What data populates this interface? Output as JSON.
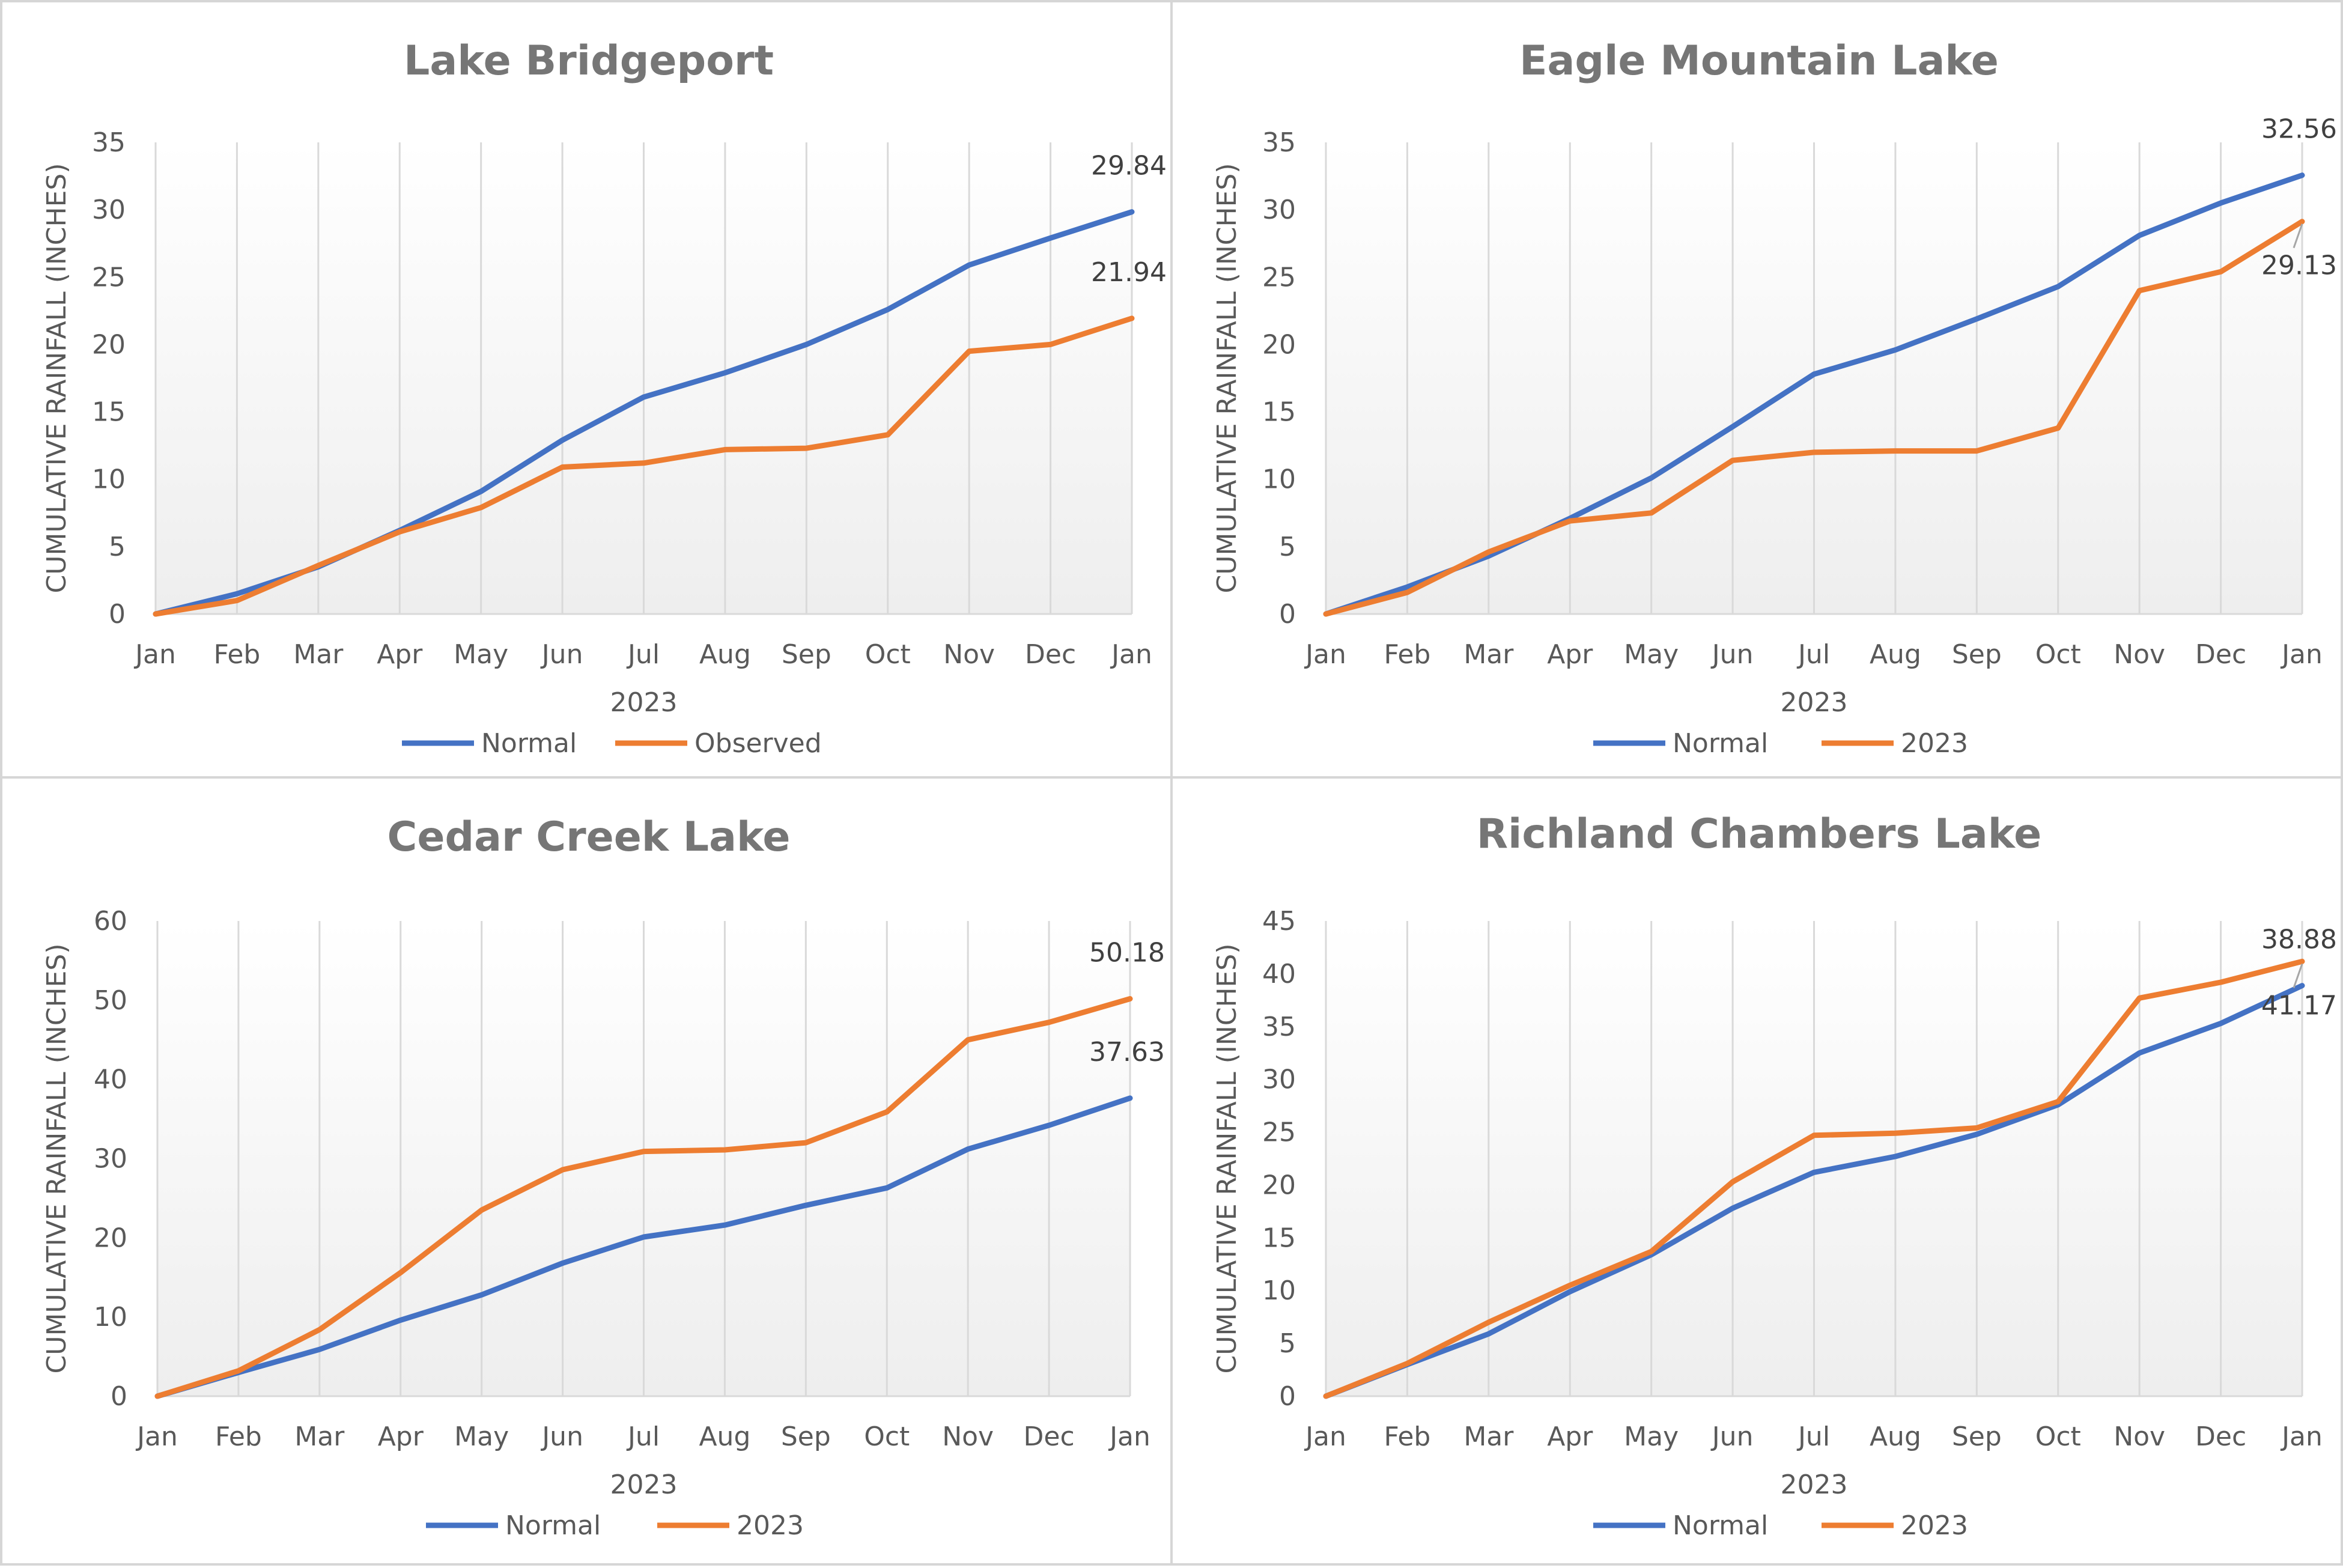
{
  "colors": {
    "normal": "#4472C4",
    "observed": "#ED7D31",
    "grid": "#d9d9d9",
    "text": "#595959",
    "title": "#767676"
  },
  "chart_data": [
    {
      "type": "line",
      "title": "Lake Bridgeport",
      "xlabel": "2023",
      "ylabel": "CUMULATIVE RAINFALL (INCHES)",
      "categories": [
        "Jan",
        "Feb",
        "Mar",
        "Apr",
        "May",
        "Jun",
        "Jul",
        "Aug",
        "Sep",
        "Oct",
        "Nov",
        "Dec",
        "Jan"
      ],
      "ylim": [
        0,
        35
      ],
      "yticks": [
        "0",
        "5",
        "10",
        "15",
        "20",
        "25",
        "30",
        "35"
      ],
      "legend_position": "bottom",
      "series": [
        {
          "name": "Normal",
          "color": "#4472C4",
          "values": [
            0,
            1.5,
            3.5,
            6.2,
            9.1,
            12.9,
            16.1,
            17.9,
            20.0,
            22.6,
            25.9,
            27.9,
            29.84
          ],
          "end_label": "29.84"
        },
        {
          "name": "Observed",
          "color": "#ED7D31",
          "values": [
            0,
            1.0,
            3.6,
            6.1,
            7.9,
            10.9,
            11.2,
            12.2,
            12.3,
            13.3,
            19.5,
            20.0,
            21.94
          ],
          "end_label": "21.94"
        }
      ]
    },
    {
      "type": "line",
      "title": "Eagle Mountain Lake",
      "xlabel": "2023",
      "ylabel": "CUMULATIVE RAINFALL (INCHES)",
      "categories": [
        "Jan",
        "Feb",
        "Mar",
        "Apr",
        "May",
        "Jun",
        "Jul",
        "Aug",
        "Sep",
        "Oct",
        "Nov",
        "Dec",
        "Jan"
      ],
      "ylim": [
        0,
        35
      ],
      "yticks": [
        "0",
        "5",
        "10",
        "15",
        "20",
        "25",
        "30",
        "35"
      ],
      "legend_position": "bottom",
      "series": [
        {
          "name": "Normal",
          "color": "#4472C4",
          "values": [
            0,
            2.0,
            4.3,
            7.1,
            10.1,
            13.9,
            17.8,
            19.6,
            21.9,
            24.3,
            28.1,
            30.5,
            32.56
          ],
          "end_label": "32.56"
        },
        {
          "name": "2023",
          "color": "#ED7D31",
          "values": [
            0,
            1.6,
            4.6,
            6.9,
            7.5,
            11.4,
            12.0,
            12.1,
            12.1,
            13.8,
            24.0,
            25.4,
            29.13
          ],
          "end_label": "29.13"
        }
      ]
    },
    {
      "type": "line",
      "title": "Cedar Creek Lake",
      "xlabel": "2023",
      "ylabel": "CUMULATIVE RAINFALL (INCHES)",
      "categories": [
        "Jan",
        "Feb",
        "Mar",
        "Apr",
        "May",
        "Jun",
        "Jul",
        "Aug",
        "Sep",
        "Oct",
        "Nov",
        "Dec",
        "Jan"
      ],
      "ylim": [
        0,
        60
      ],
      "yticks": [
        "0",
        "10",
        "20",
        "30",
        "40",
        "50",
        "60"
      ],
      "legend_position": "bottom",
      "series": [
        {
          "name": "Normal",
          "color": "#4472C4",
          "values": [
            0,
            3.0,
            5.9,
            9.6,
            12.8,
            16.8,
            20.1,
            21.6,
            24.1,
            26.3,
            31.2,
            34.2,
            37.63
          ],
          "end_label": "37.63"
        },
        {
          "name": "2023",
          "color": "#ED7D31",
          "values": [
            0,
            3.2,
            8.4,
            15.6,
            23.5,
            28.6,
            30.9,
            31.1,
            32.0,
            35.9,
            45.0,
            47.2,
            50.18
          ],
          "end_label": "50.18"
        }
      ]
    },
    {
      "type": "line",
      "title": "Richland Chambers Lake",
      "xlabel": "2023",
      "ylabel": "CUMULATIVE RAINFALL (INCHES)",
      "categories": [
        "Jan",
        "Feb",
        "Mar",
        "Apr",
        "May",
        "Jun",
        "Jul",
        "Aug",
        "Sep",
        "Oct",
        "Nov",
        "Dec",
        "Jan"
      ],
      "ylim": [
        0,
        45
      ],
      "yticks": [
        "0",
        "5",
        "10",
        "15",
        "20",
        "25",
        "30",
        "35",
        "40",
        "45"
      ],
      "legend_position": "bottom",
      "series": [
        {
          "name": "Normal",
          "color": "#4472C4",
          "values": [
            0,
            3.0,
            5.9,
            9.9,
            13.4,
            17.8,
            21.2,
            22.7,
            24.8,
            27.6,
            32.5,
            35.3,
            38.88
          ],
          "end_label": "38.88"
        },
        {
          "name": "2023",
          "color": "#ED7D31",
          "values": [
            0,
            3.1,
            7.0,
            10.5,
            13.7,
            20.3,
            24.7,
            24.9,
            25.4,
            27.9,
            37.7,
            39.2,
            41.17
          ],
          "end_label": "41.17"
        }
      ]
    }
  ]
}
